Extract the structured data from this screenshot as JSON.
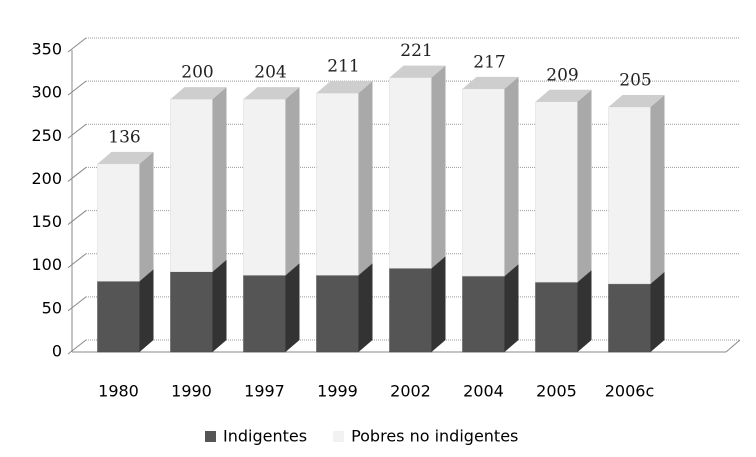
{
  "chart_data": {
    "type": "bar3d_stacked",
    "categories": [
      "1980",
      "1990",
      "1997",
      "1999",
      "2002",
      "2004",
      "2005",
      "2006c"
    ],
    "series": [
      {
        "name": "Indigentes",
        "color": "#555555",
        "values": [
          82,
          93,
          89,
          89,
          97,
          88,
          81,
          79
        ]
      },
      {
        "name": "Pobres no indigentes",
        "color": "#f2f2f2",
        "values": [
          136,
          200,
          204,
          211,
          221,
          217,
          209,
          205
        ]
      }
    ],
    "ylim": [
      0,
      350
    ],
    "yticks": [
      0,
      50,
      100,
      150,
      200,
      250,
      300,
      350
    ],
    "grid": true,
    "legend": "bottom"
  }
}
